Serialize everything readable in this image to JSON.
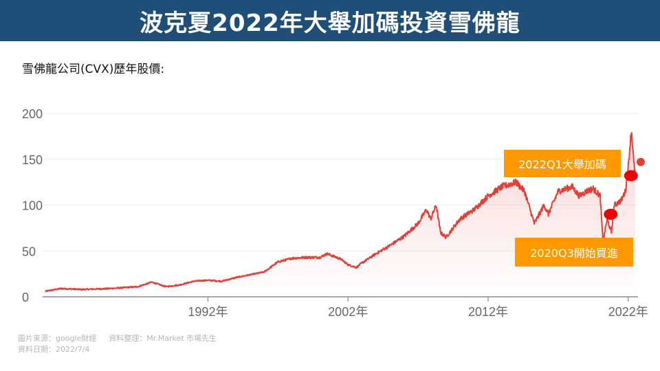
{
  "header": {
    "title": "波克夏2022年大舉加碼投資雪佛龍"
  },
  "subtitle": "雪佛龍公司(CVX)歷年股價:",
  "footer": {
    "source": "圖片來源：google財經",
    "compiled": "資料整理：Mr.Market 市場先生",
    "date": "資料日期：2022/7/4"
  },
  "annotations": {
    "buy_label": "2020Q3開始買進",
    "add_label": "2022Q1大舉加碼"
  },
  "colors": {
    "line": "#e0403a",
    "marker": "#ee0000",
    "callout": "#ff9900",
    "title_bg": "#1f4e79"
  },
  "chart_data": {
    "type": "area",
    "title": "雪佛龍公司(CVX)歷年股價:",
    "xlabel": "",
    "ylabel": "",
    "ylim": [
      0,
      200
    ],
    "y_ticks": [
      0,
      50,
      100,
      150,
      200
    ],
    "x_ticks": [
      {
        "year": 1992,
        "label": "1992年"
      },
      {
        "year": 2002,
        "label": "2002年"
      },
      {
        "year": 2012,
        "label": "2012年"
      },
      {
        "year": 2022,
        "label": "2022年"
      }
    ],
    "xlim": [
      1980.2,
      2022.7
    ],
    "series": [
      {
        "name": "CVX",
        "x": [
          1980.4,
          1981.5,
          1983,
          1985,
          1987,
          1988,
          1989,
          1990,
          1991,
          1992,
          1993,
          1994,
          1995,
          1996,
          1997,
          1998,
          1999,
          2000,
          2000.5,
          2001,
          2001.5,
          2002,
          2002.6,
          2003,
          2004,
          2005,
          2006,
          2007,
          2007.6,
          2007.9,
          2008.3,
          2008.6,
          2009,
          2010,
          2011,
          2012,
          2013,
          2014,
          2014.6,
          2015,
          2015.3,
          2016,
          2016.3,
          2017,
          2018,
          2018.5,
          2019,
          2019.5,
          2020,
          2020.2,
          2020.5,
          2020.8,
          2021,
          2021.5,
          2021.8,
          2022,
          2022.15,
          2022.25,
          2022.4,
          2022.5
        ],
        "values": [
          6,
          9,
          8,
          9,
          11,
          16,
          11,
          13,
          17,
          18,
          17,
          21,
          24,
          27,
          38,
          42,
          43,
          43,
          47,
          44,
          41,
          35,
          32,
          37,
          47,
          56,
          66,
          80,
          95,
          85,
          100,
          70,
          65,
          85,
          95,
          110,
          120,
          125,
          115,
          95,
          80,
          100,
          90,
          115,
          120,
          110,
          115,
          118,
          110,
          60,
          85,
          70,
          100,
          105,
          115,
          140,
          170,
          180,
          145,
          135
        ]
      }
    ],
    "markers": [
      {
        "x": 2020.75,
        "y": 90,
        "label": "2020Q3開始買進"
      },
      {
        "x": 2022.2,
        "y": 132,
        "label": "2022Q1大舉加碼"
      }
    ],
    "grid": true
  }
}
